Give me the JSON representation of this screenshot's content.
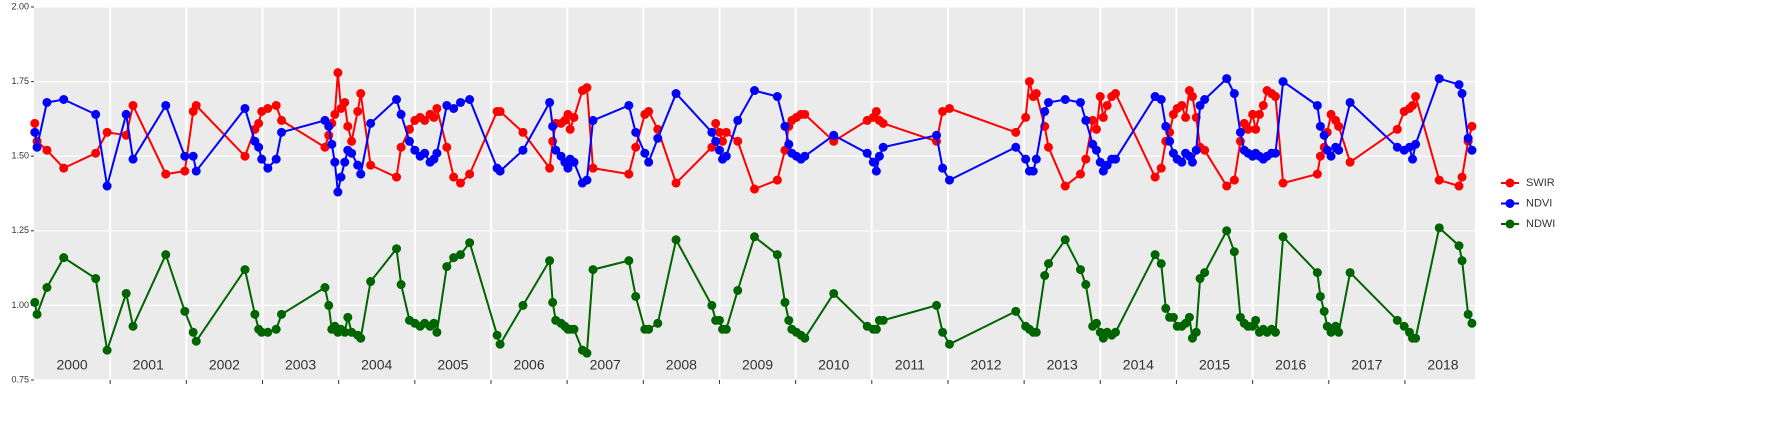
{
  "chart_data": {
    "type": "line",
    "x": [
      2000.01,
      2000.04,
      2000.17,
      2000.39,
      2000.81,
      2000.96,
      2001.21,
      2001.3,
      2001.73,
      2001.98,
      2002.09,
      2002.13,
      2002.77,
      2002.9,
      2002.95,
      2002.99,
      2003.07,
      2003.18,
      2003.25,
      2003.82,
      2003.87,
      2003.91,
      2003.95,
      2003.99,
      2004.03,
      2004.08,
      2004.12,
      2004.17,
      2004.25,
      2004.29,
      2004.42,
      2004.76,
      2004.82,
      2004.93,
      2005.0,
      2005.07,
      2005.13,
      2005.2,
      2005.25,
      2005.29,
      2005.42,
      2005.51,
      2005.6,
      2005.72,
      2006.08,
      2006.12,
      2006.42,
      2006.77,
      2006.81,
      2006.85,
      2006.92,
      2006.97,
      2007.01,
      2007.04,
      2007.09,
      2007.2,
      2007.26,
      2007.34,
      2007.81,
      2007.9,
      2008.02,
      2008.07,
      2008.19,
      2008.43,
      2008.9,
      2008.95,
      2009.0,
      2009.04,
      2009.09,
      2009.24,
      2009.46,
      2009.76,
      2009.86,
      2009.91,
      2009.95,
      2010.01,
      2010.07,
      2010.12,
      2010.5,
      2010.94,
      2011.02,
      2011.06,
      2011.1,
      2011.15,
      2011.85,
      2011.93,
      2012.02,
      2012.89,
      2013.02,
      2013.07,
      2013.12,
      2013.16,
      2013.27,
      2013.32,
      2013.54,
      2013.74,
      2013.81,
      2013.9,
      2013.95,
      2014.0,
      2014.04,
      2014.09,
      2014.15,
      2014.2,
      2014.72,
      2014.8,
      2014.86,
      2014.91,
      2014.96,
      2015.01,
      2015.07,
      2015.12,
      2015.17,
      2015.21,
      2015.26,
      2015.31,
      2015.37,
      2015.66,
      2015.76,
      2015.84,
      2015.89,
      2015.94,
      2016.0,
      2016.04,
      2016.09,
      2016.14,
      2016.19,
      2016.25,
      2016.3,
      2016.4,
      2016.85,
      2016.89,
      2016.94,
      2016.98,
      2017.03,
      2017.09,
      2017.13,
      2017.28,
      2017.9,
      2017.99,
      2018.06,
      2018.1,
      2018.14,
      2018.45,
      2018.71,
      2018.75,
      2018.83,
      2018.88
    ],
    "series": [
      {
        "name": "SWIR",
        "color": "#ff0000",
        "values": [
          1.61,
          1.55,
          1.52,
          1.46,
          1.51,
          1.58,
          1.57,
          1.67,
          1.44,
          1.45,
          1.65,
          1.67,
          1.5,
          1.59,
          1.61,
          1.65,
          1.66,
          1.67,
          1.62,
          1.53,
          1.57,
          1.61,
          1.64,
          1.78,
          1.66,
          1.68,
          1.6,
          1.55,
          1.65,
          1.71,
          1.47,
          1.43,
          1.53,
          1.59,
          1.62,
          1.63,
          1.62,
          1.64,
          1.63,
          1.66,
          1.53,
          1.43,
          1.41,
          1.44,
          1.65,
          1.65,
          1.58,
          1.46,
          1.55,
          1.61,
          1.61,
          1.62,
          1.64,
          1.59,
          1.63,
          1.72,
          1.73,
          1.46,
          1.44,
          1.53,
          1.64,
          1.65,
          1.59,
          1.41,
          1.53,
          1.61,
          1.58,
          1.55,
          1.58,
          1.55,
          1.39,
          1.42,
          1.52,
          1.6,
          1.62,
          1.63,
          1.64,
          1.64,
          1.55,
          1.62,
          1.63,
          1.65,
          1.62,
          1.61,
          1.55,
          1.65,
          1.66,
          1.58,
          1.63,
          1.75,
          1.7,
          1.71,
          1.6,
          1.53,
          1.4,
          1.44,
          1.49,
          1.62,
          1.59,
          1.7,
          1.63,
          1.67,
          1.7,
          1.71,
          1.43,
          1.46,
          1.55,
          1.58,
          1.64,
          1.66,
          1.67,
          1.63,
          1.72,
          1.7,
          1.63,
          1.53,
          1.52,
          1.4,
          1.42,
          1.55,
          1.61,
          1.59,
          1.64,
          1.59,
          1.64,
          1.67,
          1.72,
          1.71,
          1.7,
          1.41,
          1.44,
          1.5,
          1.53,
          1.58,
          1.64,
          1.62,
          1.6,
          1.48,
          1.59,
          1.65,
          1.66,
          1.67,
          1.7,
          1.42,
          1.4,
          1.43,
          1.55,
          1.6
        ]
      },
      {
        "name": "NDVI",
        "color": "#0000ff",
        "values": [
          1.58,
          1.53,
          1.68,
          1.69,
          1.64,
          1.4,
          1.64,
          1.49,
          1.67,
          1.5,
          1.5,
          1.45,
          1.66,
          1.55,
          1.53,
          1.49,
          1.46,
          1.49,
          1.58,
          1.62,
          1.6,
          1.54,
          1.48,
          1.38,
          1.43,
          1.48,
          1.52,
          1.51,
          1.47,
          1.44,
          1.61,
          1.69,
          1.64,
          1.55,
          1.52,
          1.5,
          1.51,
          1.48,
          1.49,
          1.51,
          1.67,
          1.66,
          1.68,
          1.69,
          1.46,
          1.45,
          1.52,
          1.68,
          1.6,
          1.52,
          1.5,
          1.48,
          1.46,
          1.49,
          1.48,
          1.41,
          1.42,
          1.62,
          1.67,
          1.58,
          1.51,
          1.48,
          1.56,
          1.71,
          1.58,
          1.55,
          1.52,
          1.49,
          1.5,
          1.62,
          1.72,
          1.7,
          1.6,
          1.54,
          1.51,
          1.5,
          1.49,
          1.5,
          1.57,
          1.51,
          1.48,
          1.45,
          1.5,
          1.53,
          1.57,
          1.46,
          1.42,
          1.53,
          1.49,
          1.45,
          1.45,
          1.49,
          1.65,
          1.68,
          1.69,
          1.68,
          1.62,
          1.54,
          1.52,
          1.48,
          1.45,
          1.47,
          1.49,
          1.49,
          1.7,
          1.69,
          1.6,
          1.55,
          1.51,
          1.49,
          1.48,
          1.51,
          1.5,
          1.48,
          1.52,
          1.67,
          1.69,
          1.76,
          1.71,
          1.58,
          1.52,
          1.51,
          1.5,
          1.51,
          1.5,
          1.49,
          1.5,
          1.51,
          1.51,
          1.75,
          1.67,
          1.6,
          1.57,
          1.52,
          1.5,
          1.53,
          1.52,
          1.68,
          1.53,
          1.52,
          1.53,
          1.49,
          1.54,
          1.76,
          1.74,
          1.71,
          1.56,
          1.52
        ]
      },
      {
        "name": "NDWI",
        "color": "#006400",
        "values": [
          1.01,
          0.97,
          1.06,
          1.16,
          1.09,
          0.85,
          1.04,
          0.93,
          1.17,
          0.98,
          0.91,
          0.88,
          1.12,
          0.97,
          0.92,
          0.91,
          0.91,
          0.92,
          0.97,
          1.06,
          1.0,
          0.92,
          0.93,
          0.91,
          0.92,
          0.91,
          0.96,
          0.91,
          0.9,
          0.89,
          1.08,
          1.19,
          1.07,
          0.95,
          0.94,
          0.93,
          0.94,
          0.93,
          0.94,
          0.91,
          1.13,
          1.16,
          1.17,
          1.21,
          0.9,
          0.87,
          1.0,
          1.15,
          1.01,
          0.95,
          0.94,
          0.93,
          0.92,
          0.92,
          0.92,
          0.85,
          0.84,
          1.12,
          1.15,
          1.03,
          0.92,
          0.92,
          0.94,
          1.22,
          1.0,
          0.95,
          0.95,
          0.92,
          0.92,
          1.05,
          1.23,
          1.17,
          1.01,
          0.95,
          0.92,
          0.91,
          0.9,
          0.89,
          1.04,
          0.93,
          0.92,
          0.92,
          0.95,
          0.95,
          1.0,
          0.91,
          0.87,
          0.98,
          0.93,
          0.92,
          0.91,
          0.91,
          1.1,
          1.14,
          1.22,
          1.12,
          1.07,
          0.93,
          0.94,
          0.91,
          0.89,
          0.91,
          0.9,
          0.91,
          1.17,
          1.14,
          0.99,
          0.96,
          0.96,
          0.93,
          0.93,
          0.94,
          0.96,
          0.89,
          0.91,
          1.09,
          1.11,
          1.25,
          1.18,
          0.96,
          0.94,
          0.93,
          0.93,
          0.95,
          0.91,
          0.92,
          0.91,
          0.92,
          0.91,
          1.23,
          1.11,
          1.03,
          0.98,
          0.93,
          0.91,
          0.93,
          0.91,
          1.11,
          0.95,
          0.93,
          0.91,
          0.89,
          0.89,
          1.26,
          1.2,
          1.15,
          0.97,
          0.94
        ]
      }
    ],
    "xlim": [
      2000,
      2018.92
    ],
    "xticks": [
      2001,
      2002,
      2003,
      2004,
      2005,
      2006,
      2007,
      2008,
      2009,
      2010,
      2011,
      2012,
      2013,
      2014,
      2015,
      2016,
      2017,
      2018
    ],
    "year_labels": [
      {
        "text": "2000",
        "x": 2000.5
      },
      {
        "text": "2001",
        "x": 2001.5
      },
      {
        "text": "2002",
        "x": 2002.5
      },
      {
        "text": "2003",
        "x": 2003.5
      },
      {
        "text": "2004",
        "x": 2004.5
      },
      {
        "text": "2005",
        "x": 2005.5
      },
      {
        "text": "2006",
        "x": 2006.5
      },
      {
        "text": "2007",
        "x": 2007.5
      },
      {
        "text": "2008",
        "x": 2008.5
      },
      {
        "text": "2009",
        "x": 2009.5
      },
      {
        "text": "2010",
        "x": 2010.5
      },
      {
        "text": "2011",
        "x": 2011.5
      },
      {
        "text": "2012",
        "x": 2012.5
      },
      {
        "text": "2013",
        "x": 2013.5
      },
      {
        "text": "2014",
        "x": 2014.5
      },
      {
        "text": "2015",
        "x": 2015.5
      },
      {
        "text": "2016",
        "x": 2016.5
      },
      {
        "text": "2017",
        "x": 2017.5
      },
      {
        "text": "2018",
        "x": 2018.5
      }
    ],
    "ylim": [
      0.75,
      2.0
    ],
    "yticks": [
      0.75,
      {
        "value": 1.0,
        "label": "1.00"
      },
      1.25,
      {
        "value": 1.5,
        "label": "1.50"
      },
      1.75,
      {
        "value": 2.0,
        "label": "2.00"
      }
    ],
    "grid": true,
    "legend": "right"
  }
}
